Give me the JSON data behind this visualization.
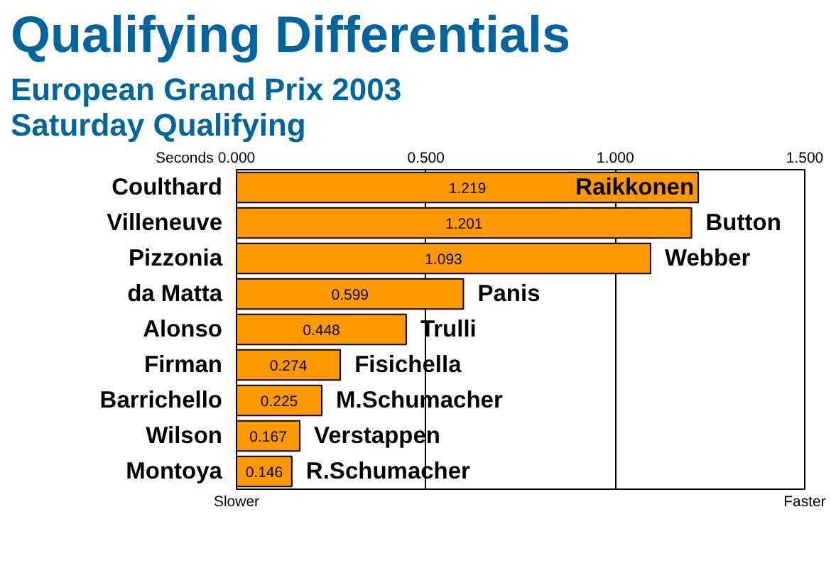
{
  "chart_data": {
    "type": "bar",
    "orientation": "horizontal",
    "title": "Qualifying Differentials",
    "subtitle": "European Grand Prix 2003\nSaturday Qualifying",
    "categories": [
      "Coulthard",
      "Villeneuve",
      "Pizzonia",
      "da Matta",
      "Alonso",
      "Firman",
      "Barrichello",
      "Wilson",
      "Montoya"
    ],
    "values": [
      1.219,
      1.201,
      1.093,
      0.599,
      0.448,
      0.274,
      0.225,
      0.167,
      0.146
    ],
    "color": "#ff9900",
    "data_labels": true,
    "xlim": [
      0,
      1.5
    ],
    "xticks": [
      {
        "value": 0,
        "label": "0.000"
      },
      {
        "value": 0.5,
        "label": "0.500"
      },
      {
        "value": 1.0,
        "label": "1.000"
      },
      {
        "value": 1.5,
        "label": "1.500"
      }
    ],
    "xlabel": "Seconds",
    "grid": "x",
    "annotations": [
      "Slower",
      "Faster",
      {
        "text": "Raikkonen",
        "x": 1.219,
        "y": "Coulthard"
      },
      {
        "text": "Button",
        "x": 1.201,
        "y": "Villeneuve"
      },
      {
        "text": "Webber",
        "x": 1.093,
        "y": "Pizzonia"
      },
      {
        "text": "Panis",
        "x": 0.599,
        "y": "da Matta"
      },
      {
        "text": "Trulli",
        "x": 0.448,
        "y": "Alonso"
      },
      {
        "text": "Fisichella",
        "x": 0.274,
        "y": "Firman"
      },
      {
        "text": "M.Schumacher",
        "x": 0.225,
        "y": "Barrichello"
      },
      {
        "text": "Verstappen",
        "x": 0.167,
        "y": "Wilson"
      },
      {
        "text": "R.Schumacher",
        "x": 0.146,
        "y": "Montoya"
      }
    ]
  }
}
